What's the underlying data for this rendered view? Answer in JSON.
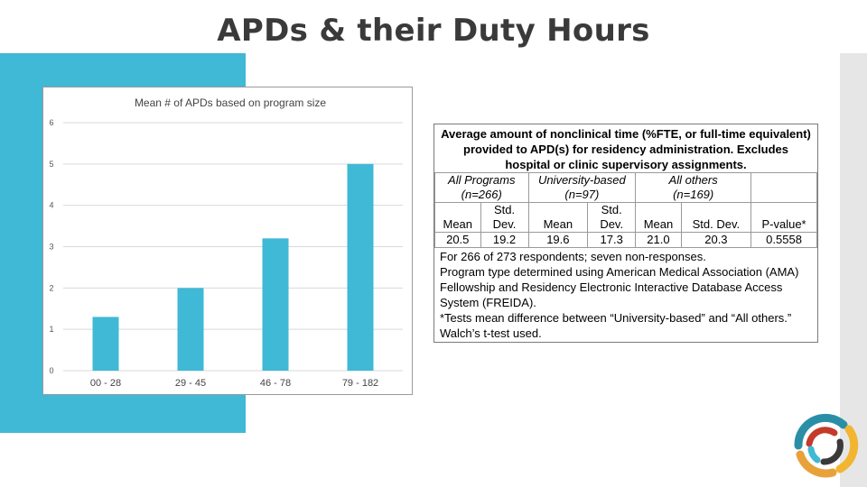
{
  "slide": {
    "title": "APDs & their Duty Hours"
  },
  "colors": {
    "accent": "#3fb9d5",
    "bar": "#3fb9d5",
    "strip": "#e6e6e6"
  },
  "chart_data": {
    "type": "bar",
    "title": "Mean # of APDs based on program size",
    "categories": [
      "00 - 28",
      "29 - 45",
      "46 - 78",
      "79 - 182"
    ],
    "values": [
      1.3,
      2.0,
      3.2,
      5.0
    ],
    "ylim": [
      0,
      6
    ],
    "yticks": [
      "0",
      "1",
      "2",
      "3",
      "4",
      "5",
      "6"
    ],
    "grid": true
  },
  "table": {
    "caption": "Average amount of nonclinical time (%FTE, or full-time equivalent) provided to APD(s) for residency administration. Excludes hospital or clinic supervisory assignments.",
    "groups": [
      {
        "name": "All Programs",
        "n": "(n=266)"
      },
      {
        "name": "University-based",
        "n": "(n=97)"
      },
      {
        "name": "All others",
        "n": "(n=169)"
      }
    ],
    "headers": [
      "Mean",
      "Std. Dev.",
      "Mean",
      "Std. Dev.",
      "Mean",
      "Std. Dev.",
      "P-value*"
    ],
    "values": [
      "20.5",
      "19.2",
      "19.6",
      "17.3",
      "21.0",
      "20.3",
      "0.5558"
    ],
    "notes": [
      "For 266 of 273 respondents; seven non-responses.",
      "Program type determined using American Medical Association (AMA) Fellowship and Residency Electronic Interactive Database Access System (FREIDA).",
      "*Tests mean difference between “University-based” and “All others.” Walch’s t-test used."
    ]
  },
  "logo": {
    "icon": "circular-swirl-logo-icon"
  }
}
